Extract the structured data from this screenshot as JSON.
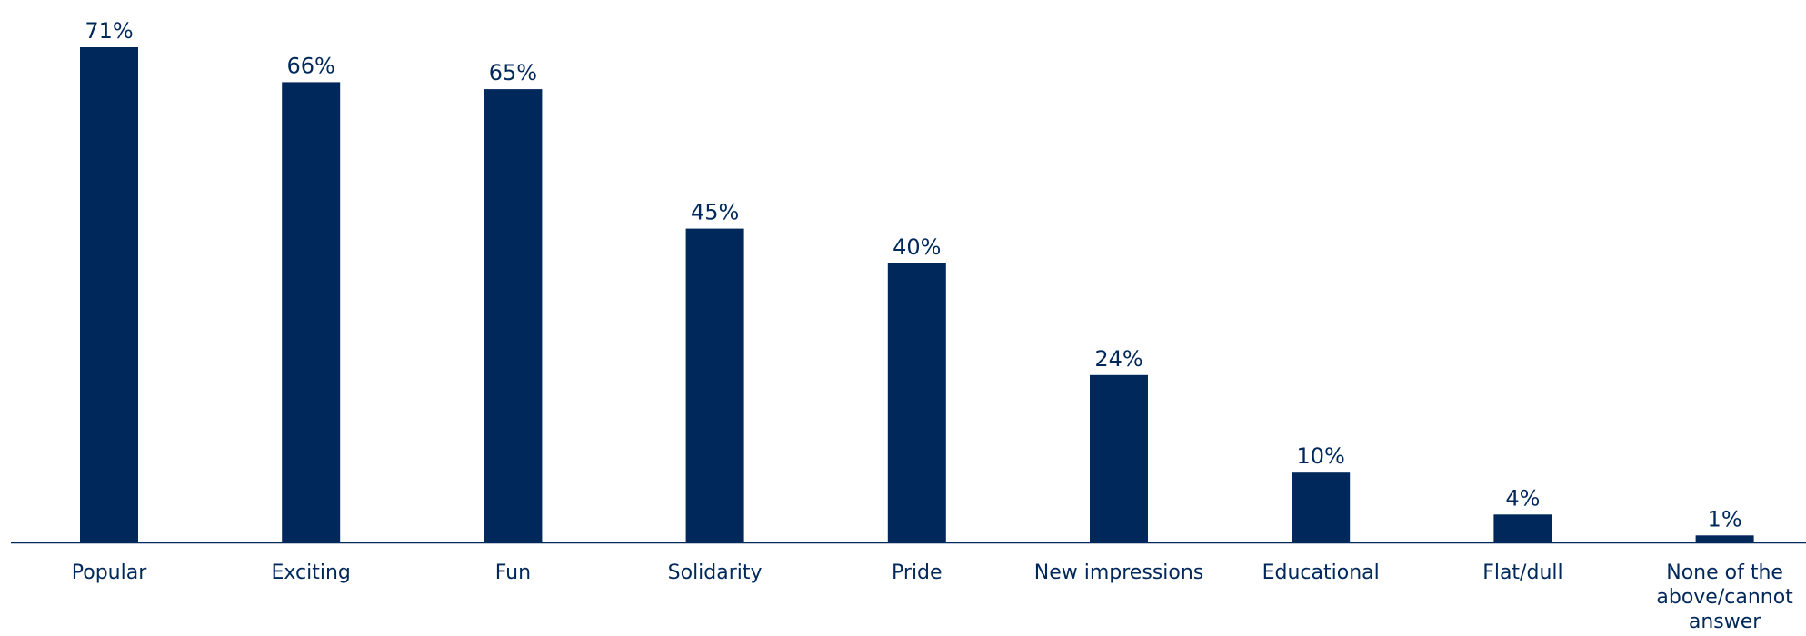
{
  "chart_data": {
    "type": "bar",
    "categories": [
      [
        "Popular"
      ],
      [
        "Exciting"
      ],
      [
        "Fun"
      ],
      [
        "Solidarity"
      ],
      [
        "Pride"
      ],
      [
        "New impressions"
      ],
      [
        "Educational"
      ],
      [
        "Flat/dull"
      ],
      [
        "None of the",
        "above/cannot",
        "answer"
      ]
    ],
    "values": [
      71,
      66,
      65,
      45,
      40,
      24,
      10,
      4,
      1
    ],
    "value_labels": [
      "71%",
      "66%",
      "65%",
      "45%",
      "40%",
      "24%",
      "10%",
      "4%",
      "1%"
    ],
    "ylim": [
      0,
      71
    ],
    "grid": false,
    "legend": "none",
    "colors": {
      "bar": "#00285a",
      "axis": "#00285a",
      "text": "#00285a"
    }
  }
}
